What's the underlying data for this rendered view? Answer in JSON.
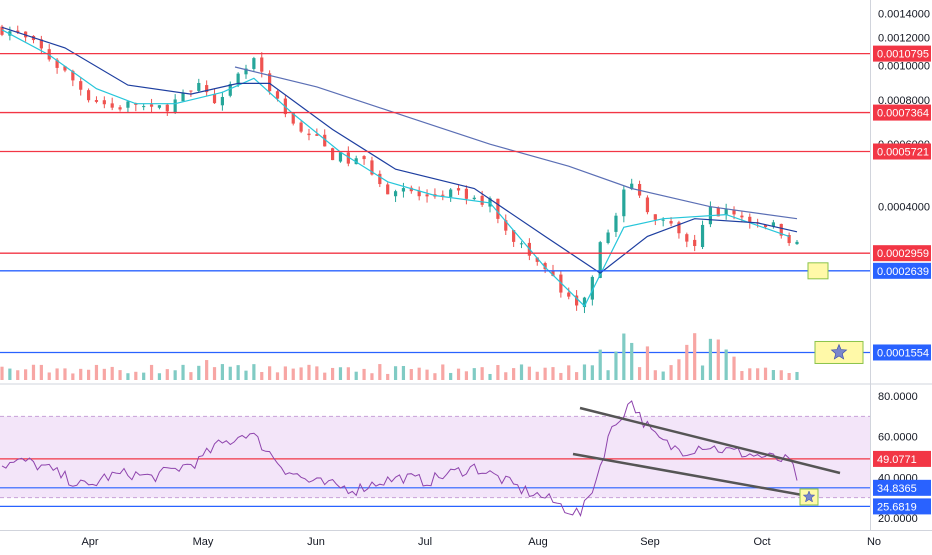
{
  "chart_data": [
    {
      "type": "candlestick",
      "panel": "price",
      "y_axis_labels": [
        "0.0014000",
        "0.0012000",
        "0.0010000",
        "0.0008000",
        "0.0006000",
        "0.0004000"
      ],
      "y_axis_values": [
        0.0014,
        0.0012,
        0.001,
        0.0008,
        0.0006,
        0.0004
      ],
      "ylim": [
        0.00013,
        0.00147
      ],
      "x_tick_labels": [
        "Apr",
        "May",
        "Jun",
        "Jul",
        "Aug",
        "Sep",
        "Oct",
        "No"
      ],
      "horizontal_levels": [
        {
          "label": "0.0010795",
          "value": 0.0010795,
          "color": "#f23645"
        },
        {
          "label": "0.0007364",
          "value": 0.0007364,
          "color": "#f23645"
        },
        {
          "label": "0.0005721",
          "value": 0.0005721,
          "color": "#f23645"
        },
        {
          "label": "0.0002959",
          "value": 0.0002959,
          "color": "#f23645"
        },
        {
          "label": "0.0002639",
          "value": 0.0002639,
          "color": "#2962ff"
        },
        {
          "label": "0.0001554",
          "value": 0.0001554,
          "color": "#2962ff"
        }
      ],
      "close_approx": [
        [
          0,
          0.00127
        ],
        [
          10,
          0.00122
        ],
        [
          25,
          0.0011
        ],
        [
          40,
          0.00095
        ],
        [
          55,
          0.00082
        ],
        [
          70,
          0.00076
        ],
        [
          85,
          0.00078
        ],
        [
          95,
          0.00074
        ],
        [
          110,
          0.00079
        ],
        [
          125,
          0.00086
        ],
        [
          140,
          0.00079
        ],
        [
          150,
          0.00092
        ],
        [
          160,
          0.00103
        ],
        [
          168,
          0.00086
        ],
        [
          180,
          0.00072
        ],
        [
          195,
          0.00064
        ],
        [
          210,
          0.00056
        ],
        [
          220,
          0.00054
        ],
        [
          232,
          0.00053
        ],
        [
          243,
          0.00045
        ],
        [
          258,
          0.00044
        ],
        [
          270,
          0.00042
        ],
        [
          283,
          0.00044
        ],
        [
          297,
          0.00042
        ],
        [
          310,
          0.00041
        ],
        [
          322,
          0.00034
        ],
        [
          335,
          0.00029
        ],
        [
          347,
          0.00026
        ],
        [
          358,
          0.00022
        ],
        [
          368,
          0.0002
        ],
        [
          378,
          0.00029
        ],
        [
          390,
          0.00039
        ],
        [
          398,
          0.00047
        ],
        [
          404,
          0.00043
        ],
        [
          412,
          0.00039
        ],
        [
          420,
          0.00036
        ],
        [
          430,
          0.00033
        ],
        [
          440,
          0.00031
        ],
        [
          450,
          0.00039
        ],
        [
          460,
          0.00039
        ],
        [
          472,
          0.00037
        ],
        [
          485,
          0.00036
        ],
        [
          496,
          0.00034
        ],
        [
          505,
          0.00031
        ]
      ],
      "moving_averages": [
        {
          "color": "#26c6da",
          "description": "short",
          "points": [
            [
              0,
              0.00126
            ],
            [
              30,
              0.00107
            ],
            [
              60,
              0.00086
            ],
            [
              85,
              0.00078
            ],
            [
              110,
              0.00078
            ],
            [
              140,
              0.00084
            ],
            [
              160,
              0.00092
            ],
            [
              185,
              0.00073
            ],
            [
              215,
              0.00057
            ],
            [
              245,
              0.00047
            ],
            [
              275,
              0.00043
            ],
            [
              310,
              0.00041
            ],
            [
              345,
              0.00027
            ],
            [
              370,
              0.00021
            ],
            [
              395,
              0.00035
            ],
            [
              420,
              0.00037
            ],
            [
              460,
              0.00038
            ],
            [
              500,
              0.00033
            ]
          ]
        },
        {
          "color": "#1e3fa0",
          "description": "medium",
          "points": [
            [
              0,
              0.00128
            ],
            [
              40,
              0.00112
            ],
            [
              80,
              0.00088
            ],
            [
              120,
              0.00083
            ],
            [
              150,
              0.00089
            ],
            [
              170,
              0.00089
            ],
            [
              210,
              0.00066
            ],
            [
              250,
              0.00051
            ],
            [
              300,
              0.00045
            ],
            [
              345,
              0.00033
            ],
            [
              380,
              0.00026
            ],
            [
              410,
              0.00033
            ],
            [
              440,
              0.00037
            ],
            [
              480,
              0.00036
            ],
            [
              505,
              0.00034
            ]
          ]
        },
        {
          "color": "#5b6fb5",
          "description": "long",
          "points": [
            [
              148,
              0.00099
            ],
            [
              200,
              0.00087
            ],
            [
              260,
              0.00071
            ],
            [
              310,
              0.0006
            ],
            [
              360,
              0.00052
            ],
            [
              400,
              0.00045
            ],
            [
              450,
              0.0004
            ],
            [
              505,
              0.00037
            ]
          ]
        }
      ]
    },
    {
      "type": "line",
      "panel": "rsi",
      "y_axis_labels": [
        "80.0000",
        "60.0000",
        "40.0000",
        "20.0000"
      ],
      "y_axis_values": [
        80,
        60,
        40,
        20
      ],
      "ylim": [
        18,
        84
      ],
      "band": [
        30,
        70
      ],
      "horizontal_levels": [
        {
          "label": "49.0771",
          "value": 49.0771,
          "color": "#f23645"
        },
        {
          "label": "34.8365",
          "value": 34.8365,
          "color": "#2962ff"
        },
        {
          "label": "25.6819",
          "value": 25.6819,
          "color": "#2962ff"
        }
      ],
      "rsi_approx": [
        [
          0,
          46
        ],
        [
          15,
          48
        ],
        [
          30,
          44
        ],
        [
          45,
          38
        ],
        [
          55,
          35
        ],
        [
          65,
          40
        ],
        [
          80,
          42
        ],
        [
          95,
          40
        ],
        [
          110,
          44
        ],
        [
          125,
          48
        ],
        [
          135,
          55
        ],
        [
          145,
          58
        ],
        [
          155,
          62
        ],
        [
          160,
          60
        ],
        [
          170,
          52
        ],
        [
          180,
          44
        ],
        [
          195,
          38
        ],
        [
          210,
          36
        ],
        [
          225,
          34
        ],
        [
          240,
          38
        ],
        [
          255,
          40
        ],
        [
          270,
          38
        ],
        [
          285,
          42
        ],
        [
          300,
          45
        ],
        [
          315,
          40
        ],
        [
          330,
          34
        ],
        [
          345,
          30
        ],
        [
          360,
          24
        ],
        [
          368,
          22
        ],
        [
          378,
          40
        ],
        [
          385,
          60
        ],
        [
          393,
          70
        ],
        [
          400,
          78
        ],
        [
          405,
          70
        ],
        [
          415,
          60
        ],
        [
          425,
          55
        ],
        [
          435,
          53
        ],
        [
          445,
          56
        ],
        [
          455,
          54
        ],
        [
          470,
          52
        ],
        [
          485,
          50
        ],
        [
          500,
          48
        ],
        [
          505,
          40
        ]
      ],
      "trendlines": [
        {
          "points": [
            [
              390,
              82
            ],
            [
              531,
              46
            ]
          ]
        },
        {
          "points": [
            [
              367,
              55
            ],
            [
              510,
              28
            ]
          ]
        }
      ]
    }
  ],
  "theme": {
    "up": "#26a69a",
    "down": "#ef5350",
    "red_level": "#f23645",
    "blue_level": "#2962ff",
    "rsi_line": "#8e44ad",
    "rsi_band": "#f3e5f9",
    "highlight_fill": "#fff9a8",
    "highlight_stroke": "#8bc34a"
  }
}
